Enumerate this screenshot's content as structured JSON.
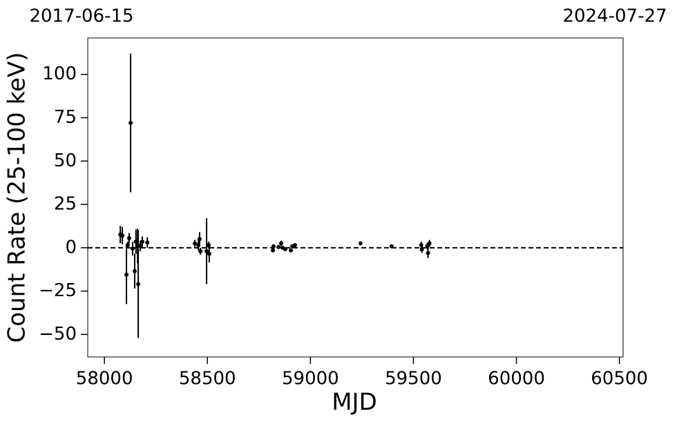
{
  "chart_data": {
    "type": "scatter",
    "xlabel": "MJD",
    "ylabel": "Count Rate (25-100 keV)",
    "annotations": [
      "2017-06-15",
      "2024-07-27"
    ],
    "xlim": [
      57919,
      60518
    ],
    "xticks": [
      58000,
      58500,
      59000,
      59500,
      60000,
      60500
    ],
    "ylim": [
      -63,
      121
    ],
    "yticks": [
      {
        "value": -50,
        "label": "−50"
      },
      {
        "value": -25,
        "label": "−25"
      },
      0,
      25,
      50,
      75,
      100
    ],
    "hline": 0,
    "color": "#000000",
    "x": [
      58077,
      58087,
      58107,
      58113,
      58120,
      58127,
      58137,
      58147,
      58153,
      58161,
      58164,
      58174,
      58184,
      58208,
      58439,
      58456,
      58462,
      58466,
      58496,
      58506,
      58509,
      58818,
      58821,
      58845,
      58858,
      58865,
      58878,
      58905,
      58912,
      58925,
      59243,
      59394,
      59538,
      59541,
      59568,
      59571,
      59578
    ],
    "values": [
      7.6,
      7,
      -15.5,
      1.5,
      5.5,
      72,
      -0.5,
      -13.5,
      3.5,
      1,
      -21,
      1,
      3.5,
      3,
      2.5,
      1.5,
      5,
      -2,
      -2,
      1.5,
      -3.5,
      -1.5,
      0.8,
      0.4,
      2.5,
      0,
      -0.8,
      -1.5,
      0.8,
      1.5,
      2.5,
      0.8,
      1.5,
      -1,
      1,
      -3,
      2.5
    ],
    "errors": [
      5,
      5,
      17,
      2,
      3,
      40,
      4,
      10,
      7,
      10,
      31,
      3,
      3,
      3,
      2,
      3,
      4,
      2,
      19,
      2,
      5,
      1,
      1,
      1,
      1.5,
      1,
      1,
      1,
      1,
      1,
      1,
      1,
      2,
      2,
      2,
      3,
      2
    ]
  }
}
